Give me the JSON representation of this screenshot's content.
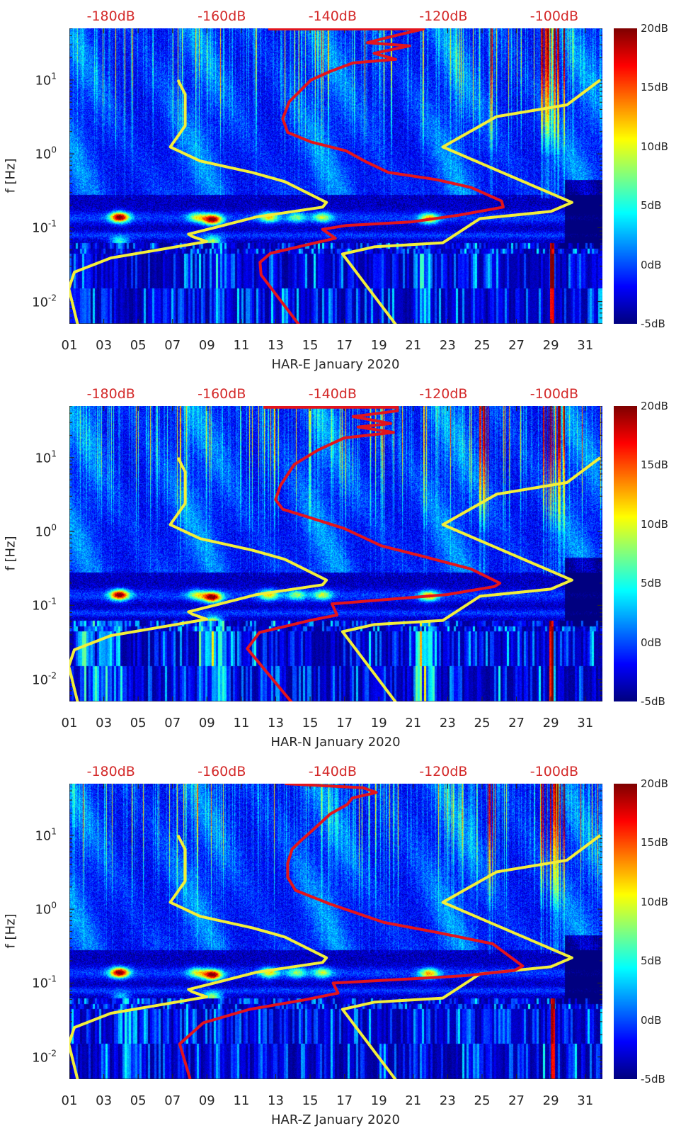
{
  "shared": {
    "ylabel": "f [Hz]",
    "xlim": [
      1,
      32
    ],
    "ylim": [
      0.005,
      50
    ],
    "yscale": "log",
    "x_ticks": [
      {
        "value": 1,
        "label": "01"
      },
      {
        "value": 3,
        "label": "03"
      },
      {
        "value": 5,
        "label": "05"
      },
      {
        "value": 7,
        "label": "07"
      },
      {
        "value": 9,
        "label": "09"
      },
      {
        "value": 11,
        "label": "11"
      },
      {
        "value": 13,
        "label": "13"
      },
      {
        "value": 15,
        "label": "15"
      },
      {
        "value": 17,
        "label": "17"
      },
      {
        "value": 19,
        "label": "19"
      },
      {
        "value": 21,
        "label": "21"
      },
      {
        "value": 23,
        "label": "23"
      },
      {
        "value": 25,
        "label": "25"
      },
      {
        "value": 27,
        "label": "27"
      },
      {
        "value": 29,
        "label": "29"
      },
      {
        "value": 31,
        "label": "31"
      }
    ],
    "y_ticks": [
      {
        "value": 10,
        "base": "10",
        "exp": "1"
      },
      {
        "value": 1,
        "base": "10",
        "exp": "0"
      },
      {
        "value": 0.1,
        "base": "10",
        "exp": "-1"
      },
      {
        "value": 0.01,
        "base": "10",
        "exp": "-2"
      }
    ],
    "top_axis_range_db": [
      -187.5,
      -91.3
    ],
    "top_axis_ticks": [
      {
        "value": -180,
        "label": "-180dB"
      },
      {
        "value": -160,
        "label": "-160dB"
      },
      {
        "value": -140,
        "label": "-140dB"
      },
      {
        "value": -120,
        "label": "-120dB"
      },
      {
        "value": -100,
        "label": "-100dB"
      }
    ],
    "colorbar": {
      "range": [
        -5,
        20
      ],
      "colormap": "jet",
      "ticks": [
        {
          "value": 20,
          "label": "20dB"
        },
        {
          "value": 15,
          "label": "15dB"
        },
        {
          "value": 10,
          "label": "10dB"
        },
        {
          "value": 5,
          "label": "5dB"
        },
        {
          "value": 0,
          "label": "0dB"
        },
        {
          "value": -5,
          "label": "-5dB"
        }
      ]
    },
    "colors": {
      "low_high_model": "#f2ee3a",
      "median": "#e3141c",
      "top_labels": "#d42a2a",
      "axis": "#262626"
    },
    "noise_model_low": [
      [
        -167.9,
        10
      ],
      [
        -166.6,
        6.4
      ],
      [
        -166.6,
        2.4
      ],
      [
        -169.3,
        1.24
      ],
      [
        -163.9,
        0.8
      ],
      [
        -154.5,
        0.56
      ],
      [
        -148.6,
        0.42
      ],
      [
        -141.1,
        0.22
      ],
      [
        -141.8,
        0.19
      ],
      [
        -153.7,
        0.14
      ],
      [
        -161.4,
        0.1
      ],
      [
        -166.0,
        0.082
      ],
      [
        -165.3,
        0.076
      ],
      [
        -162.7,
        0.065
      ],
      [
        -171.6,
        0.05
      ],
      [
        -180.0,
        0.039
      ],
      [
        -186.6,
        0.025
      ],
      [
        -187.6,
        0.015
      ],
      [
        -186.0,
        0.0049
      ]
    ],
    "noise_model_high": [
      [
        -91.7,
        10
      ],
      [
        -97.7,
        4.6
      ],
      [
        -110.4,
        3.2
      ],
      [
        -120.1,
        1.24
      ],
      [
        -96.8,
        0.22
      ],
      [
        -100.6,
        0.166
      ],
      [
        -113.4,
        0.133
      ],
      [
        -120.1,
        0.0625
      ],
      [
        -132.5,
        0.055
      ],
      [
        -138.2,
        0.044
      ],
      [
        -128.6,
        0.0049
      ]
    ]
  },
  "chart_data": [
    {
      "type": "heatmap",
      "xlabel": "HAR-E January 2020",
      "seed": 11,
      "median": [
        [
          -151.6,
          49
        ],
        [
          -123.6,
          49
        ],
        [
          -128.6,
          40
        ],
        [
          -133.7,
          32
        ],
        [
          -126.1,
          29
        ],
        [
          -132.5,
          23
        ],
        [
          -128.6,
          19
        ],
        [
          -136.3,
          17
        ],
        [
          -140.5,
          13
        ],
        [
          -143.9,
          10
        ],
        [
          -147.8,
          5.1
        ],
        [
          -149.0,
          3.0
        ],
        [
          -148.1,
          1.95
        ],
        [
          -143.9,
          1.45
        ],
        [
          -137.6,
          1.1
        ],
        [
          -134.1,
          0.79
        ],
        [
          -129.9,
          0.56
        ],
        [
          -121.4,
          0.45
        ],
        [
          -115.0,
          0.35
        ],
        [
          -109.5,
          0.23
        ],
        [
          -109.2,
          0.19
        ],
        [
          -117.2,
          0.148
        ],
        [
          -125.7,
          0.12
        ],
        [
          -137.6,
          0.107
        ],
        [
          -141.8,
          0.095
        ],
        [
          -139.5,
          0.072
        ],
        [
          -151.2,
          0.045
        ],
        [
          -153.1,
          0.034
        ],
        [
          -152.9,
          0.023
        ],
        [
          -146.1,
          0.0049
        ]
      ],
      "microseism_peaks": [
        {
          "day": 3.9,
          "f_hz": 0.14,
          "db": 22
        },
        {
          "day": 9.3,
          "f_hz": 0.13,
          "db": 22
        },
        {
          "day": 8.4,
          "f_hz": 0.14,
          "db": 10
        },
        {
          "day": 12.6,
          "f_hz": 0.14,
          "db": 12
        },
        {
          "day": 14.2,
          "f_hz": 0.14,
          "db": 8
        },
        {
          "day": 15.7,
          "f_hz": 0.14,
          "db": 10
        },
        {
          "day": 21.9,
          "f_hz": 0.135,
          "db": 14
        },
        {
          "day": 3.9,
          "f_hz": 0.065,
          "db": 9
        },
        {
          "day": 9.3,
          "f_hz": 0.065,
          "db": 12
        }
      ],
      "low_freq_bright": [
        [
          1.5,
          2.2,
          4
        ],
        [
          9.2,
          9.8,
          4
        ],
        [
          21,
          22,
          4
        ]
      ],
      "hf_red_days": [
        [
          28.4,
          29.8
        ],
        [
          25.3,
          25.6
        ]
      ],
      "strip_day": 29.05
    },
    {
      "type": "heatmap",
      "xlabel": "HAR-N January 2020",
      "seed": 23,
      "median": [
        [
          -152.5,
          48
        ],
        [
          -128.3,
          48
        ],
        [
          -128.3,
          43
        ],
        [
          -136.3,
          36
        ],
        [
          -129.5,
          29
        ],
        [
          -135.4,
          26
        ],
        [
          -129.0,
          22
        ],
        [
          -137.9,
          18.5
        ],
        [
          -142.7,
          12.6
        ],
        [
          -146.9,
          8.1
        ],
        [
          -149.4,
          4.2
        ],
        [
          -150.3,
          2.7
        ],
        [
          -149.0,
          2.0
        ],
        [
          -144.8,
          1.6
        ],
        [
          -137.9,
          1.1
        ],
        [
          -131.2,
          0.64
        ],
        [
          -123.6,
          0.46
        ],
        [
          -115.0,
          0.31
        ],
        [
          -109.8,
          0.2
        ],
        [
          -110.8,
          0.18
        ],
        [
          -119.3,
          0.14
        ],
        [
          -132.1,
          0.117
        ],
        [
          -140.1,
          0.105
        ],
        [
          -139.2,
          0.074
        ],
        [
          -143.9,
          0.063
        ],
        [
          -153.2,
          0.043
        ],
        [
          -155.4,
          0.026
        ],
        [
          -147.4,
          0.0049
        ]
      ],
      "microseism_peaks": [
        {
          "day": 3.9,
          "f_hz": 0.14,
          "db": 22
        },
        {
          "day": 9.3,
          "f_hz": 0.13,
          "db": 22
        },
        {
          "day": 8.4,
          "f_hz": 0.14,
          "db": 10
        },
        {
          "day": 12.6,
          "f_hz": 0.14,
          "db": 12
        },
        {
          "day": 14.2,
          "f_hz": 0.14,
          "db": 9
        },
        {
          "day": 15.7,
          "f_hz": 0.14,
          "db": 10
        },
        {
          "day": 21.9,
          "f_hz": 0.135,
          "db": 14
        },
        {
          "day": 9.3,
          "f_hz": 0.06,
          "db": 16
        },
        {
          "day": 21.7,
          "f_hz": 0.04,
          "db": 14
        }
      ],
      "low_freq_bright": [
        [
          1.5,
          4,
          7
        ],
        [
          8.5,
          10,
          8
        ],
        [
          21,
          22.3,
          9
        ],
        [
          12.5,
          13.5,
          3
        ]
      ],
      "hf_red_days": [
        [
          28.4,
          29.8
        ],
        [
          24.8,
          25.5
        ]
      ],
      "strip_day": 29.0
    },
    {
      "type": "heatmap",
      "xlabel": "HAR-Z January 2020",
      "seed": 37,
      "median": [
        [
          -148.6,
          50
        ],
        [
          -134.5,
          44
        ],
        [
          -132.1,
          38
        ],
        [
          -136.4,
          32
        ],
        [
          -137.4,
          26
        ],
        [
          -140.4,
          19.5
        ],
        [
          -143.3,
          12.3
        ],
        [
          -145.7,
          8.5
        ],
        [
          -147.3,
          6.5
        ],
        [
          -148.1,
          4.2
        ],
        [
          -148.1,
          2.7
        ],
        [
          -146.7,
          1.8
        ],
        [
          -140.4,
          1.17
        ],
        [
          -130.7,
          0.66
        ],
        [
          -120.9,
          0.48
        ],
        [
          -111.1,
          0.34
        ],
        [
          -105.7,
          0.17
        ],
        [
          -107.2,
          0.148
        ],
        [
          -116.0,
          0.126
        ],
        [
          -125.7,
          0.114
        ],
        [
          -139.9,
          0.1
        ],
        [
          -139.0,
          0.073
        ],
        [
          -145.2,
          0.059
        ],
        [
          -155.0,
          0.044
        ],
        [
          -163.3,
          0.029
        ],
        [
          -167.6,
          0.015
        ],
        [
          -165.7,
          0.005
        ]
      ],
      "microseism_peaks": [
        {
          "day": 3.9,
          "f_hz": 0.14,
          "db": 22
        },
        {
          "day": 9.3,
          "f_hz": 0.13,
          "db": 22
        },
        {
          "day": 8.4,
          "f_hz": 0.14,
          "db": 10
        },
        {
          "day": 12.6,
          "f_hz": 0.14,
          "db": 12
        },
        {
          "day": 14.2,
          "f_hz": 0.14,
          "db": 9
        },
        {
          "day": 15.7,
          "f_hz": 0.14,
          "db": 10
        },
        {
          "day": 21.9,
          "f_hz": 0.135,
          "db": 14
        },
        {
          "day": 9.3,
          "f_hz": 0.065,
          "db": 12
        },
        {
          "day": 4,
          "f_hz": 0.065,
          "db": 6
        }
      ],
      "low_freq_bright": [
        [
          3.5,
          5,
          4
        ],
        [
          9.5,
          10,
          3
        ]
      ],
      "hf_red_days": [
        [
          28.4,
          29.8
        ],
        [
          25.3,
          25.6
        ]
      ],
      "strip_day": 29.1
    }
  ]
}
